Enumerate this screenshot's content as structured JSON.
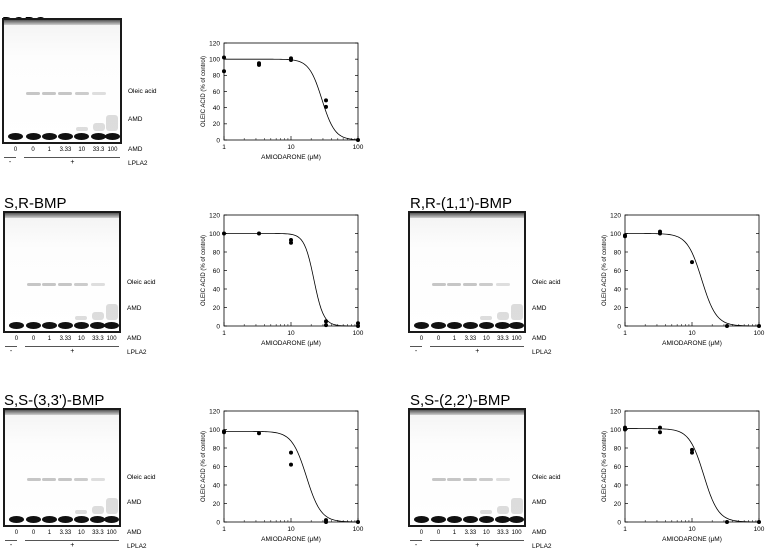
{
  "labels": {
    "oleic": "Oleic acid",
    "amd_band": "AMD",
    "amd_row": "AMD",
    "lpla2": "LPLA2",
    "minus": "-",
    "plus": "+",
    "lanes": [
      "0",
      "0",
      "1",
      "3.33",
      "10",
      "33.3",
      "100"
    ]
  },
  "colors": {
    "spot": "#111111",
    "frame": "#1a1a1a",
    "curve": "#000000"
  },
  "panels": [
    {
      "title": "DOPG"
    },
    {
      "title": "S,R-BMP"
    },
    {
      "title": "R,R-(1,1')-BMP"
    },
    {
      "title": "S,S-(3,3')-BMP"
    },
    {
      "title": "S,S-(2,2')-BMP"
    }
  ],
  "chart_data": [
    {
      "type": "scatter",
      "title": "DOPG",
      "xlabel": "AMIODARONE (μM)",
      "ylabel": "OLEIC ACID (% of control)",
      "xscale": "log",
      "xlim": [
        1,
        100
      ],
      "ylim": [
        0,
        120
      ],
      "xticks": [
        "1",
        "10",
        "100"
      ],
      "yticks": [
        "0",
        "20",
        "40",
        "60",
        "80",
        "100",
        "120"
      ],
      "points": [
        [
          1,
          102
        ],
        [
          1,
          85
        ],
        [
          3.33,
          95
        ],
        [
          3.33,
          93
        ],
        [
          10,
          101
        ],
        [
          10,
          99
        ],
        [
          33.3,
          49
        ],
        [
          33.3,
          41
        ],
        [
          100,
          0
        ]
      ],
      "fit": {
        "top": 100,
        "ic50": 29,
        "hill": 4.5
      }
    },
    {
      "type": "scatter",
      "title": "S,R-BMP",
      "xlabel": "AMIODARONE (μM)",
      "ylabel": "OLEIC ACID (% of control)",
      "xscale": "log",
      "xlim": [
        1,
        100
      ],
      "ylim": [
        0,
        120
      ],
      "xticks": [
        "1",
        "10",
        "100"
      ],
      "yticks": [
        "0",
        "20",
        "40",
        "60",
        "80",
        "100",
        "120"
      ],
      "points": [
        [
          1,
          100
        ],
        [
          3.33,
          100
        ],
        [
          10,
          93
        ],
        [
          10,
          90
        ],
        [
          33.3,
          5
        ],
        [
          33.3,
          1
        ],
        [
          100,
          3
        ],
        [
          100,
          0
        ]
      ],
      "fit": {
        "top": 100,
        "ic50": 22,
        "hill": 6
      }
    },
    {
      "type": "scatter",
      "title": "R,R-(1,1')-BMP",
      "xlabel": "AMIODARONE (μM)",
      "ylabel": "OLEIC ACID (% of control)",
      "xscale": "log",
      "xlim": [
        1,
        100
      ],
      "ylim": [
        0,
        120
      ],
      "xticks": [
        "1",
        "10",
        "100"
      ],
      "yticks": [
        "0",
        "20",
        "40",
        "60",
        "80",
        "100",
        "120"
      ],
      "points": [
        [
          1,
          98
        ],
        [
          1,
          97
        ],
        [
          3.33,
          102
        ],
        [
          3.33,
          100
        ],
        [
          10,
          69
        ],
        [
          33.3,
          0
        ],
        [
          100,
          0
        ]
      ],
      "fit": {
        "top": 100,
        "ic50": 14,
        "hill": 4
      }
    },
    {
      "type": "scatter",
      "title": "S,S-(3,3')-BMP",
      "xlabel": "AMIODARONE (μM)",
      "ylabel": "OLEIC ACID (% of control)",
      "xscale": "log",
      "xlim": [
        1,
        100
      ],
      "ylim": [
        0,
        120
      ],
      "xticks": [
        "1",
        "10",
        "100"
      ],
      "yticks": [
        "0",
        "20",
        "40",
        "60",
        "80",
        "100",
        "120"
      ],
      "points": [
        [
          1,
          98
        ],
        [
          1,
          97
        ],
        [
          3.33,
          96
        ],
        [
          10,
          75
        ],
        [
          10,
          62
        ],
        [
          33.3,
          2
        ],
        [
          33.3,
          0
        ],
        [
          100,
          0
        ]
      ],
      "fit": {
        "top": 98,
        "ic50": 17,
        "hill": 4
      }
    },
    {
      "type": "scatter",
      "title": "S,S-(2,2')-BMP",
      "xlabel": "AMIODARONE (μM)",
      "ylabel": "OLEIC ACID (% of control)",
      "xscale": "log",
      "xlim": [
        1,
        100
      ],
      "ylim": [
        0,
        120
      ],
      "xticks": [
        "1",
        "10",
        "100"
      ],
      "yticks": [
        "0",
        "20",
        "40",
        "60",
        "80",
        "100",
        "120"
      ],
      "points": [
        [
          1,
          102
        ],
        [
          1,
          100
        ],
        [
          3.33,
          102
        ],
        [
          3.33,
          97
        ],
        [
          10,
          78
        ],
        [
          10,
          75
        ],
        [
          33.3,
          0
        ],
        [
          100,
          0
        ]
      ],
      "fit": {
        "top": 101,
        "ic50": 15,
        "hill": 4
      }
    }
  ]
}
